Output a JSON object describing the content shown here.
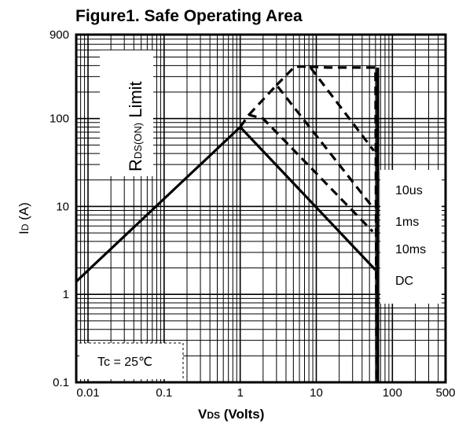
{
  "chart_data": {
    "type": "line",
    "title": "Figure1. Safe Operating Area",
    "xlabel": {
      "main": "V",
      "sub": "DS",
      "rest": " (Volts)"
    },
    "ylabel": {
      "main": "I",
      "sub": "D",
      "rest": " (A)"
    },
    "x_scale": "log",
    "y_scale": "log",
    "xlim": [
      0.007,
      500
    ],
    "ylim": [
      0.1,
      900
    ],
    "x_ticks": [
      {
        "value": 0.01,
        "label": "0.01"
      },
      {
        "value": 0.1,
        "label": "0.1"
      },
      {
        "value": 1,
        "label": "1"
      },
      {
        "value": 10,
        "label": "10"
      },
      {
        "value": 100,
        "label": "100"
      },
      {
        "value": 500,
        "label": "500"
      }
    ],
    "y_ticks": [
      {
        "value": 0.1,
        "label": "0.1"
      },
      {
        "value": 1,
        "label": "1"
      },
      {
        "value": 10,
        "label": "10"
      },
      {
        "value": 100,
        "label": "100"
      },
      {
        "value": 900,
        "label": "900"
      }
    ],
    "grid": true,
    "series": [
      {
        "name": "DC",
        "style": "solid",
        "points": [
          [
            0.007,
            1.4
          ],
          [
            1.0,
            80
          ],
          [
            60,
            1.9
          ]
        ]
      },
      {
        "name": "10ms",
        "style": "dashed",
        "points": [
          [
            1.0,
            80
          ],
          [
            1.3,
            110
          ],
          [
            2.0,
            100
          ],
          [
            55,
            5.2
          ]
        ]
      },
      {
        "name": "1ms",
        "style": "dashed",
        "points": [
          [
            1.3,
            110
          ],
          [
            3.0,
            240
          ],
          [
            54,
            10
          ]
        ]
      },
      {
        "name": "10us",
        "style": "dashed",
        "points": [
          [
            3.0,
            240
          ],
          [
            5.2,
            390
          ],
          [
            8.2,
            390
          ],
          [
            57,
            43
          ]
        ]
      },
      {
        "name": "Vds limit",
        "style": "dashed",
        "points": [
          [
            8.2,
            390
          ],
          [
            14,
            380
          ],
          [
            60,
            380
          ],
          [
            62,
            0.1
          ]
        ]
      }
    ],
    "vds_limit_line": 64,
    "annotations": {
      "rds_limit": {
        "main": "R",
        "sub": "DS(ON)",
        "rest": " Limit"
      },
      "legend": [
        "10us",
        "1ms",
        "10ms",
        "DC"
      ],
      "tc": "Tc = 25℃"
    }
  }
}
